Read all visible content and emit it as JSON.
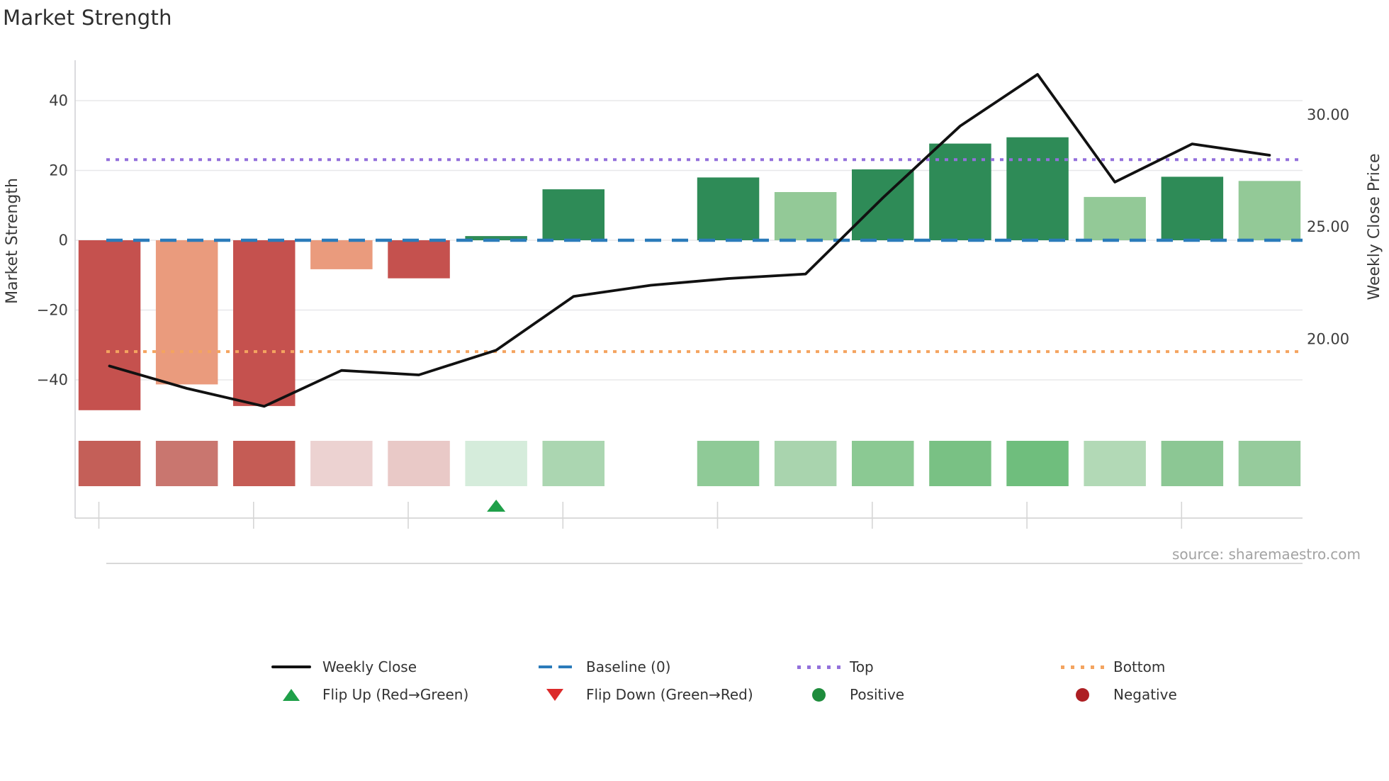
{
  "title": "Market Strength",
  "source": "source: sharemaestro.com",
  "axes": {
    "left": {
      "label": "Market Strength",
      "ticks": [
        {
          "value": 40,
          "label": "40"
        },
        {
          "value": 20,
          "label": "20"
        },
        {
          "value": 0,
          "label": "0"
        },
        {
          "value": -20,
          "label": "−20"
        },
        {
          "value": -40,
          "label": "−40"
        }
      ]
    },
    "right": {
      "label": "Weekly Close Price",
      "ticks": [
        {
          "value": 30,
          "label": "30.00"
        },
        {
          "value": 25,
          "label": "25.00"
        },
        {
          "value": 20,
          "label": "20.00"
        }
      ]
    },
    "x": {
      "labels_visible": false,
      "tick_positions": [
        1,
        3,
        5,
        7,
        9,
        11,
        13,
        15
      ]
    }
  },
  "legend": {
    "rows": [
      [
        {
          "symbol": "line",
          "color": "#111111",
          "label": "Weekly Close"
        },
        {
          "symbol": "dashes",
          "color": "#2b7bba",
          "label": "Baseline (0)"
        },
        {
          "symbol": "dots",
          "color": "#9370db",
          "label": "Top"
        },
        {
          "symbol": "dots",
          "color": "#f4a460",
          "label": "Bottom"
        }
      ],
      [
        {
          "symbol": "triangle-up",
          "color": "#1fa049",
          "label": "Flip Up (Red→Green)"
        },
        {
          "symbol": "triangle-down",
          "color": "#dc2a2a",
          "label": "Flip Down (Green→Red)"
        },
        {
          "symbol": "circle",
          "color": "#1e8c3c",
          "label": "Positive"
        },
        {
          "symbol": "circle",
          "color": "#ad1f23",
          "label": "Negative"
        }
      ]
    ]
  },
  "chart_data": {
    "type": "bar+line combo with heatmap strip",
    "n_points": 16,
    "x_tick_labels": [],
    "title": "Market Strength",
    "ylabel_left": "Market Strength",
    "ylabel_right": "Weekly Close Price",
    "left_axis_range": [
      -52,
      52
    ],
    "right_axis_range": [
      16.3,
      32.4
    ],
    "grid": true,
    "bars": {
      "name": "Market Strength",
      "values": [
        -48.7,
        -41.3,
        -47.5,
        -8.3,
        -10.9,
        1.2,
        14.6,
        null,
        18.0,
        13.8,
        20.3,
        27.7,
        29.5,
        12.4,
        18.2,
        17.0
      ],
      "colors": [
        "#c5514e",
        "#ea9b7d",
        "#c5514e",
        "#ea9b7d",
        "#c5514e",
        "#2e8b57",
        "#2e8b57",
        null,
        "#2e8b57",
        "#93c997",
        "#2e8b57",
        "#2e8b57",
        "#2e8b57",
        "#93c997",
        "#2e8b57",
        "#93c997"
      ]
    },
    "line": {
      "name": "Weekly Close",
      "axis": "right",
      "color": "#111111",
      "values": [
        18.8,
        17.8,
        17.0,
        18.6,
        18.4,
        19.5,
        21.9,
        22.4,
        22.7,
        22.9,
        26.3,
        29.5,
        31.8,
        27.0,
        28.7,
        28.2
      ]
    },
    "reference_lines": {
      "baseline": {
        "value": 0,
        "color": "#2b7bba",
        "style": "dashed",
        "label": "Baseline (0)"
      },
      "top": {
        "value": 23.1,
        "color": "#9370db",
        "style": "dotted",
        "label": "Top"
      },
      "bottom": {
        "value": -31.9,
        "color": "#f4a460",
        "style": "dotted",
        "label": "Bottom"
      }
    },
    "heatmap_strip": {
      "colors": [
        "#c45f58",
        "#c9766f",
        "#c55c55",
        "#ecd2d1",
        "#e9c9c7",
        "#d5ecdb",
        "#abd6b1",
        null,
        "#8fca97",
        "#a9d4ae",
        "#8bc993",
        "#79c184",
        "#6fbe7d",
        "#b2d9b6",
        "#8cc794",
        "#96cb9c"
      ]
    },
    "markers": {
      "flip_up_positions": [
        6
      ],
      "flip_down_positions": [],
      "flip_up_color": "#1fa049",
      "flip_down_color": "#dc2a2a"
    }
  }
}
